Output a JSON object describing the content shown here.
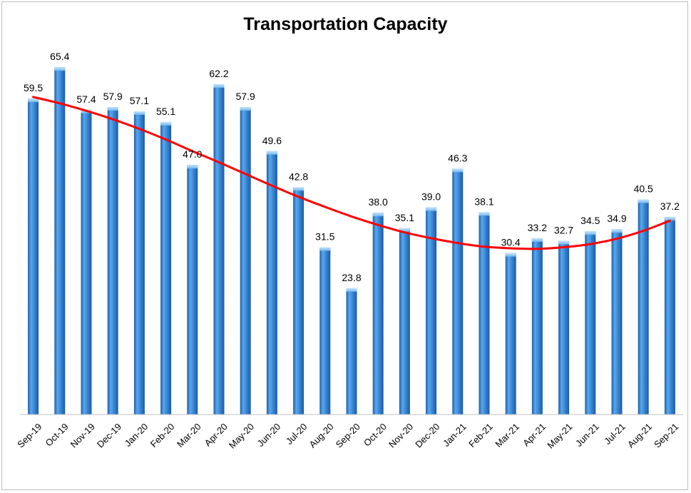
{
  "chart_data": {
    "type": "bar",
    "title": "Transportation Capacity",
    "xlabel": "",
    "ylabel": "",
    "ylim": [
      0,
      70
    ],
    "grid": false,
    "legend": "none",
    "categories": [
      "Sep-19",
      "Oct-19",
      "Nov-19",
      "Dec-19",
      "Jan-20",
      "Feb-20",
      "Mar-20",
      "Apr-20",
      "May-20",
      "Jun-20",
      "Jul-20",
      "Aug-20",
      "Sep-20",
      "Oct-20",
      "Nov-20",
      "Dec-20",
      "Jan-21",
      "Feb-21",
      "Mar-21",
      "Apr-21",
      "May-21",
      "Jun-21",
      "Jul-21",
      "Aug-21",
      "Sep-21"
    ],
    "values": [
      59.5,
      65.4,
      57.4,
      57.9,
      57.1,
      55.1,
      47.0,
      62.2,
      57.9,
      49.6,
      42.8,
      31.5,
      23.8,
      38.0,
      35.1,
      39.0,
      46.3,
      38.1,
      30.4,
      33.2,
      32.7,
      34.5,
      34.9,
      40.5,
      37.2
    ],
    "data_labels": [
      "59.5",
      "65.4",
      "57.4",
      "57.9",
      "57.1",
      "55.1",
      "47.0",
      "62.2",
      "57.9",
      "49.6",
      "42.8",
      "31.5",
      "23.8",
      "38.0",
      "35.1",
      "39.0",
      "46.3",
      "38.1",
      "30.4",
      "33.2",
      "32.7",
      "34.5",
      "34.9",
      "40.5",
      "37.2"
    ],
    "trendline": {
      "type": "polynomial",
      "color": "#ff0000",
      "values": [
        59.8,
        58.6,
        57.2,
        55.6,
        53.8,
        51.8,
        49.6,
        47.5,
        45.3,
        43.1,
        41.0,
        39.1,
        37.3,
        35.7,
        34.3,
        33.2,
        32.3,
        31.6,
        31.3,
        31.2,
        31.5,
        32.1,
        33.1,
        34.6,
        36.5
      ]
    },
    "colors": {
      "bar": "#2e7bcf",
      "bar_light": "#8cc4f2",
      "bar_dark": "#1f5ea8",
      "trend": "#ff0000"
    }
  }
}
